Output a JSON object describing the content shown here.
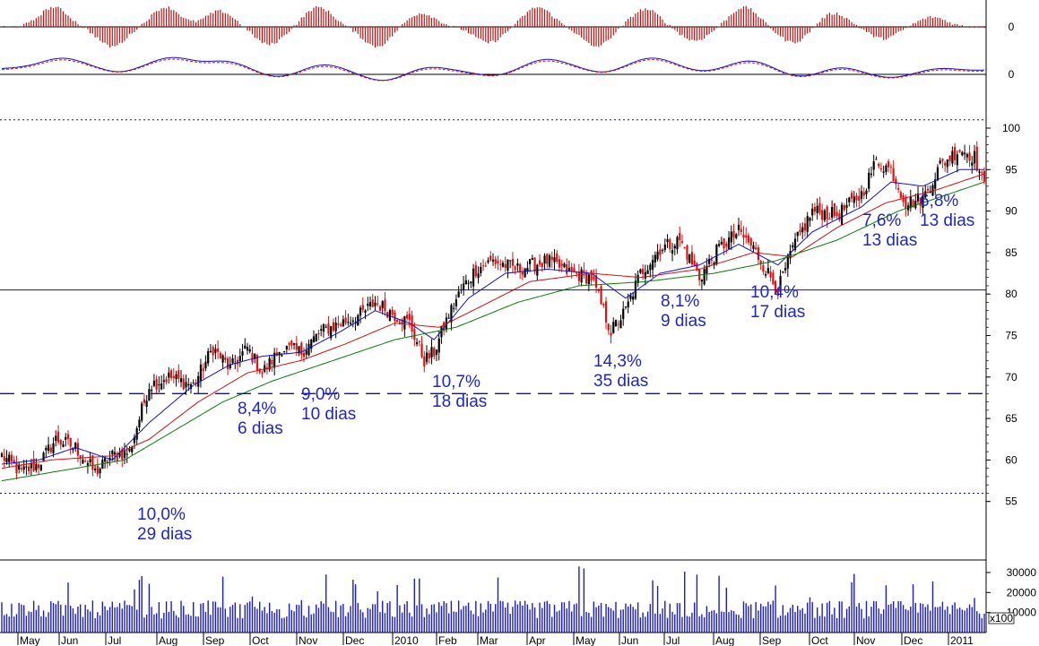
{
  "colors": {
    "up_candle": "#000000",
    "down_candle": "#e01010",
    "ma_short": "#1010d0",
    "ma_mid": "#d01010",
    "ma_long": "#0a7a0a",
    "annotation": "#1e26c8",
    "volume": "#1a1ad0",
    "hist": "#c01010",
    "reference": "#1010a0"
  },
  "chart_data": [
    {
      "type": "candlestick",
      "panel": "price",
      "y_ticks": [
        "100",
        "95",
        "90",
        "85",
        "80",
        "75",
        "70",
        "65",
        "60",
        "55"
      ],
      "ylim": [
        54,
        101
      ],
      "x_labels": [
        "May",
        "Jun",
        "Jul",
        "Aug",
        "Sep",
        "Oct",
        "Nov",
        "Dec",
        "2010",
        "Feb",
        "Mar",
        "Apr",
        "May",
        "Jun",
        "Jul",
        "Aug",
        "Sep",
        "Oct",
        "Nov",
        "Dec",
        "2011"
      ],
      "close_path": [
        [
          0,
          60.5
        ],
        [
          8,
          58.5
        ],
        [
          15,
          59.5
        ],
        [
          22,
          62.5
        ],
        [
          30,
          61.5
        ],
        [
          38,
          58.5
        ],
        [
          45,
          60.5
        ],
        [
          52,
          61.0
        ],
        [
          60,
          69.0
        ],
        [
          68,
          70.0
        ],
        [
          78,
          69.0
        ],
        [
          86,
          73.5
        ],
        [
          93,
          71.0
        ],
        [
          100,
          73.5
        ],
        [
          106,
          70.5
        ],
        [
          114,
          73.5
        ],
        [
          122,
          73.0
        ],
        [
          130,
          75.5
        ],
        [
          138,
          76.5
        ],
        [
          146,
          77.5
        ],
        [
          152,
          79.0
        ],
        [
          160,
          77.5
        ],
        [
          166,
          76.5
        ],
        [
          172,
          72.0
        ],
        [
          176,
          73.0
        ],
        [
          182,
          77.5
        ],
        [
          187,
          80.5
        ],
        [
          193,
          83.0
        ],
        [
          200,
          84.0
        ],
        [
          210,
          83.0
        ],
        [
          222,
          84.0
        ],
        [
          232,
          82.5
        ],
        [
          240,
          82.0
        ],
        [
          248,
          75.5
        ],
        [
          254,
          78.0
        ],
        [
          260,
          82.5
        ],
        [
          268,
          85.5
        ],
        [
          276,
          86.5
        ],
        [
          284,
          82.0
        ],
        [
          292,
          85.5
        ],
        [
          300,
          87.5
        ],
        [
          306,
          85.5
        ],
        [
          312,
          82.5
        ],
        [
          316,
          80.5
        ],
        [
          322,
          85.5
        ],
        [
          330,
          90.0
        ],
        [
          340,
          89.5
        ],
        [
          350,
          92.0
        ],
        [
          356,
          96.0
        ],
        [
          362,
          95.0
        ],
        [
          368,
          91.0
        ],
        [
          375,
          91.5
        ],
        [
          382,
          95.5
        ],
        [
          390,
          97.5
        ],
        [
          396,
          96.5
        ],
        [
          400,
          93.0
        ]
      ],
      "moving_averages": [
        {
          "name": "",
          "color": "ma_short",
          "values": [
            [
              0,
              59.5
            ],
            [
              15,
              60.0
            ],
            [
              30,
              61.5
            ],
            [
              45,
              60.0
            ],
            [
              60,
              64.5
            ],
            [
              78,
              69.0
            ],
            [
              93,
              71.5
            ],
            [
              106,
              72.5
            ],
            [
              122,
              73.0
            ],
            [
              138,
              75.5
            ],
            [
              152,
              78.0
            ],
            [
              166,
              76.5
            ],
            [
              176,
              74.5
            ],
            [
              190,
              79.5
            ],
            [
              205,
              82.5
            ],
            [
              222,
              83.0
            ],
            [
              240,
              82.5
            ],
            [
              254,
              79.5
            ],
            [
              268,
              82.5
            ],
            [
              284,
              83.5
            ],
            [
              300,
              86.0
            ],
            [
              316,
              83.5
            ],
            [
              330,
              87.5
            ],
            [
              350,
              90.5
            ],
            [
              362,
              93.5
            ],
            [
              375,
              93.0
            ],
            [
              390,
              95.0
            ],
            [
              400,
              95.0
            ]
          ]
        },
        {
          "name": "",
          "color": "ma_mid",
          "values": [
            [
              0,
              59.0
            ],
            [
              20,
              60.0
            ],
            [
              45,
              60.5
            ],
            [
              60,
              62.5
            ],
            [
              80,
              67.0
            ],
            [
              100,
              70.5
            ],
            [
              122,
              72.0
            ],
            [
              140,
              74.0
            ],
            [
              160,
              76.5
            ],
            [
              178,
              76.0
            ],
            [
              195,
              78.5
            ],
            [
              215,
              81.5
            ],
            [
              240,
              82.5
            ],
            [
              260,
              82.0
            ],
            [
              284,
              83.0
            ],
            [
              306,
              85.0
            ],
            [
              322,
              84.5
            ],
            [
              340,
              88.0
            ],
            [
              360,
              91.0
            ],
            [
              380,
              92.5
            ],
            [
              400,
              94.5
            ]
          ]
        },
        {
          "name": "",
          "color": "ma_long",
          "values": [
            [
              0,
              57.5
            ],
            [
              30,
              59.0
            ],
            [
              50,
              60.0
            ],
            [
              70,
              63.5
            ],
            [
              90,
              67.0
            ],
            [
              110,
              69.5
            ],
            [
              135,
              72.0
            ],
            [
              160,
              74.5
            ],
            [
              185,
              76.0
            ],
            [
              210,
              79.0
            ],
            [
              235,
              81.0
            ],
            [
              262,
              81.5
            ],
            [
              290,
              82.5
            ],
            [
              315,
              84.0
            ],
            [
              340,
              86.5
            ],
            [
              365,
              90.0
            ],
            [
              385,
              92.0
            ],
            [
              400,
              93.5
            ]
          ]
        }
      ],
      "horizontal_lines": [
        {
          "value": 80.5,
          "style": "solid"
        },
        {
          "value": 68.0,
          "style": "dashed"
        },
        {
          "value": 101.0,
          "style": "dotted"
        },
        {
          "value": 56.0,
          "style": "dotted"
        }
      ],
      "annotations": [
        {
          "lines": [
            "10,0%",
            "29 dias"
          ]
        },
        {
          "lines": [
            "8,4%",
            "6 dias"
          ]
        },
        {
          "lines": [
            "9,0%",
            "10 dias"
          ]
        },
        {
          "lines": [
            "10,7%",
            "18 dias"
          ]
        },
        {
          "lines": [
            "14,3%",
            "35 dias"
          ]
        },
        {
          "lines": [
            "8,1%",
            "9 dias"
          ]
        },
        {
          "lines": [
            "10,4%",
            "17 dias"
          ]
        },
        {
          "lines": [
            "7,6%",
            "13 dias"
          ]
        },
        {
          "lines": [
            "6,8%",
            "13 dias"
          ]
        }
      ]
    },
    {
      "type": "bar",
      "panel": "histogram",
      "y_ticks": [
        "0"
      ]
    },
    {
      "type": "line",
      "panel": "oscillator",
      "y_ticks": [
        "0"
      ]
    },
    {
      "type": "bar",
      "panel": "volume",
      "y_ticks": [
        "30000",
        "20000",
        "10000"
      ],
      "scale_label": "x100",
      "ylim": [
        0,
        34000
      ]
    }
  ]
}
